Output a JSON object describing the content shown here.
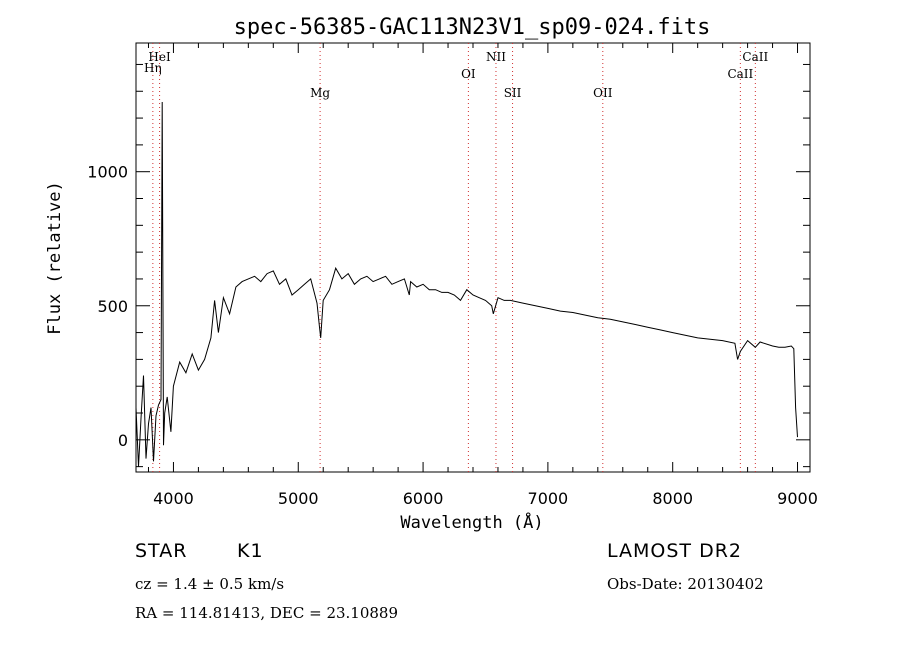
{
  "chart_data": {
    "type": "line",
    "title": "spec-56385-GAC113N23V1_sp09-024.fits",
    "xlabel": "Wavelength (Å)",
    "ylabel": "Flux (relative)",
    "xlim": [
      3700,
      9100
    ],
    "ylim": [
      -120,
      1480
    ],
    "x_ticks": [
      4000,
      5000,
      6000,
      7000,
      8000,
      9000
    ],
    "y_ticks": [
      0,
      500,
      1000
    ],
    "grid": false,
    "series": [
      {
        "x": [
          3700,
          3720,
          3740,
          3760,
          3780,
          3800,
          3820,
          3840,
          3860,
          3880,
          3900,
          3910,
          3920,
          3930,
          3950,
          3980,
          4000,
          4050,
          4100,
          4150,
          4200,
          4250,
          4300,
          4330,
          4360,
          4400,
          4450,
          4500,
          4550,
          4600,
          4650,
          4700,
          4750,
          4800,
          4850,
          4900,
          4950,
          5000,
          5050,
          5100,
          5150,
          5170,
          5180,
          5200,
          5250,
          5300,
          5350,
          5400,
          5450,
          5500,
          5550,
          5600,
          5650,
          5700,
          5750,
          5800,
          5850,
          5890,
          5900,
          5950,
          6000,
          6050,
          6100,
          6150,
          6200,
          6250,
          6300,
          6350,
          6400,
          6450,
          6500,
          6550,
          6563,
          6600,
          6650,
          6700,
          6800,
          6900,
          7000,
          7100,
          7200,
          7300,
          7400,
          7500,
          7600,
          7700,
          7800,
          7900,
          8000,
          8100,
          8200,
          8300,
          8400,
          8498,
          8520,
          8542,
          8600,
          8662,
          8700,
          8800,
          8850,
          8900,
          8950,
          8970,
          8985,
          9000
        ],
        "y": [
          120,
          -100,
          80,
          240,
          -70,
          60,
          120,
          -80,
          90,
          130,
          150,
          1260,
          -20,
          100,
          160,
          30,
          200,
          290,
          250,
          320,
          260,
          300,
          380,
          520,
          400,
          530,
          470,
          570,
          590,
          600,
          610,
          590,
          620,
          630,
          580,
          600,
          540,
          560,
          580,
          600,
          510,
          420,
          380,
          520,
          560,
          640,
          600,
          620,
          580,
          600,
          610,
          590,
          600,
          610,
          580,
          590,
          600,
          540,
          590,
          570,
          580,
          560,
          560,
          550,
          550,
          540,
          520,
          560,
          540,
          530,
          520,
          500,
          470,
          530,
          520,
          520,
          510,
          500,
          490,
          480,
          475,
          465,
          455,
          450,
          440,
          430,
          420,
          410,
          400,
          390,
          380,
          375,
          370,
          360,
          300,
          330,
          370,
          345,
          365,
          350,
          345,
          345,
          350,
          340,
          120,
          10
        ]
      }
    ],
    "lines": [
      {
        "label": "Hη",
        "x": 3835
      },
      {
        "label": "HeI",
        "x": 3889
      },
      {
        "label": "Mg",
        "x": 5175
      },
      {
        "label": "OI",
        "x": 6363
      },
      {
        "label": "NII",
        "x": 6584
      },
      {
        "label": "SII",
        "x": 6717
      },
      {
        "label": "OII",
        "x": 7440
      },
      {
        "label": "CaII",
        "x": 8542
      },
      {
        "label": "CaII",
        "x": 8662
      }
    ]
  },
  "footer": {
    "class_label": "STAR",
    "subclass": "K1",
    "survey": "LAMOST DR2",
    "cz": "cz = 1.4 ± 0.5 km/s",
    "obs_date": "Obs-Date: 20130402",
    "coords": "RA = 114.81413, DEC =  23.10889"
  }
}
